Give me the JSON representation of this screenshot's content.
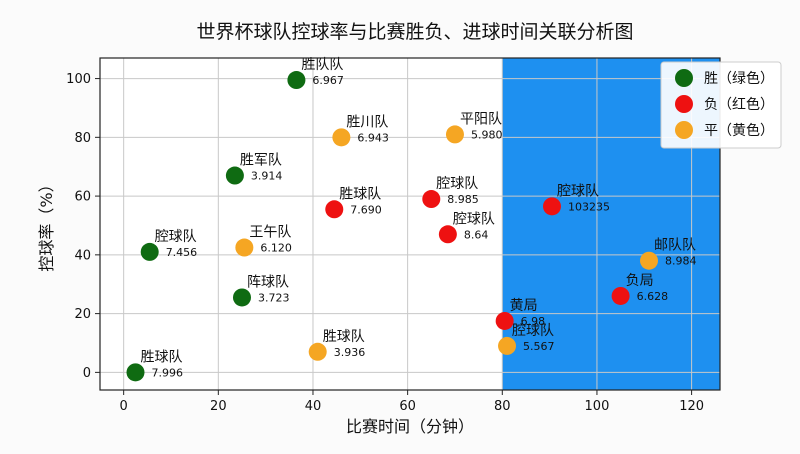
{
  "chart_data": {
    "type": "scatter",
    "title": "世界杯球队控球率与比赛胜负、进球时间关联分析图",
    "xlabel": "比赛时间（分钟）",
    "ylabel": "控球率（%）",
    "xlim": [
      -5,
      126
    ],
    "ylim": [
      -6,
      107
    ],
    "xticks": [
      0,
      20,
      40,
      60,
      80,
      100,
      120
    ],
    "yticks": [
      0,
      20,
      40,
      60,
      80,
      100
    ],
    "grid": true,
    "legend_position": "top-right",
    "highlight_region": {
      "x_from": 80,
      "x_to": 126,
      "color": "#1e90f0"
    },
    "series": [
      {
        "name": "胜（绿色）",
        "color": "#0f6b12",
        "points": [
          {
            "x": 36.5,
            "y": 99.5,
            "team": "胜队队",
            "value": "6.967"
          },
          {
            "x": 23.5,
            "y": 67,
            "team": "胜军队",
            "value": "3.914"
          },
          {
            "x": 5.5,
            "y": 41,
            "team": "腔球队",
            "value": "7.456"
          },
          {
            "x": 25,
            "y": 25.5,
            "team": "阵球队",
            "value": "3.723"
          },
          {
            "x": 2.5,
            "y": 0,
            "team": "胜球队",
            "value": "7.996"
          }
        ]
      },
      {
        "name": "负（红色）",
        "color": "#ee1111",
        "points": [
          {
            "x": 44.5,
            "y": 55.5,
            "team": "胜球队",
            "value": "7.690"
          },
          {
            "x": 65,
            "y": 59,
            "team": "腔球队",
            "value": "8.985"
          },
          {
            "x": 68.5,
            "y": 47,
            "team": "腔球队",
            "value": "8.64"
          },
          {
            "x": 90.5,
            "y": 56.5,
            "team": "腔球队",
            "value": "103235"
          },
          {
            "x": 105,
            "y": 26,
            "team": "负局",
            "value": "6.628"
          },
          {
            "x": 80.5,
            "y": 17.5,
            "team": "黄局",
            "value": "6.98"
          }
        ]
      },
      {
        "name": "平（黄色）",
        "color": "#f5a623",
        "points": [
          {
            "x": 46,
            "y": 80,
            "team": "胜川队",
            "value": "6.943"
          },
          {
            "x": 70,
            "y": 81,
            "team": "平阳队",
            "value": "5.980"
          },
          {
            "x": 25.5,
            "y": 42.5,
            "team": "王午队",
            "value": "6.120"
          },
          {
            "x": 41,
            "y": 7,
            "team": "胜球队",
            "value": "3.936"
          },
          {
            "x": 111,
            "y": 38,
            "team": "邮队队",
            "value": "8.984"
          },
          {
            "x": 81,
            "y": 9,
            "team": "腔球队",
            "value": "5.567"
          }
        ]
      }
    ]
  }
}
